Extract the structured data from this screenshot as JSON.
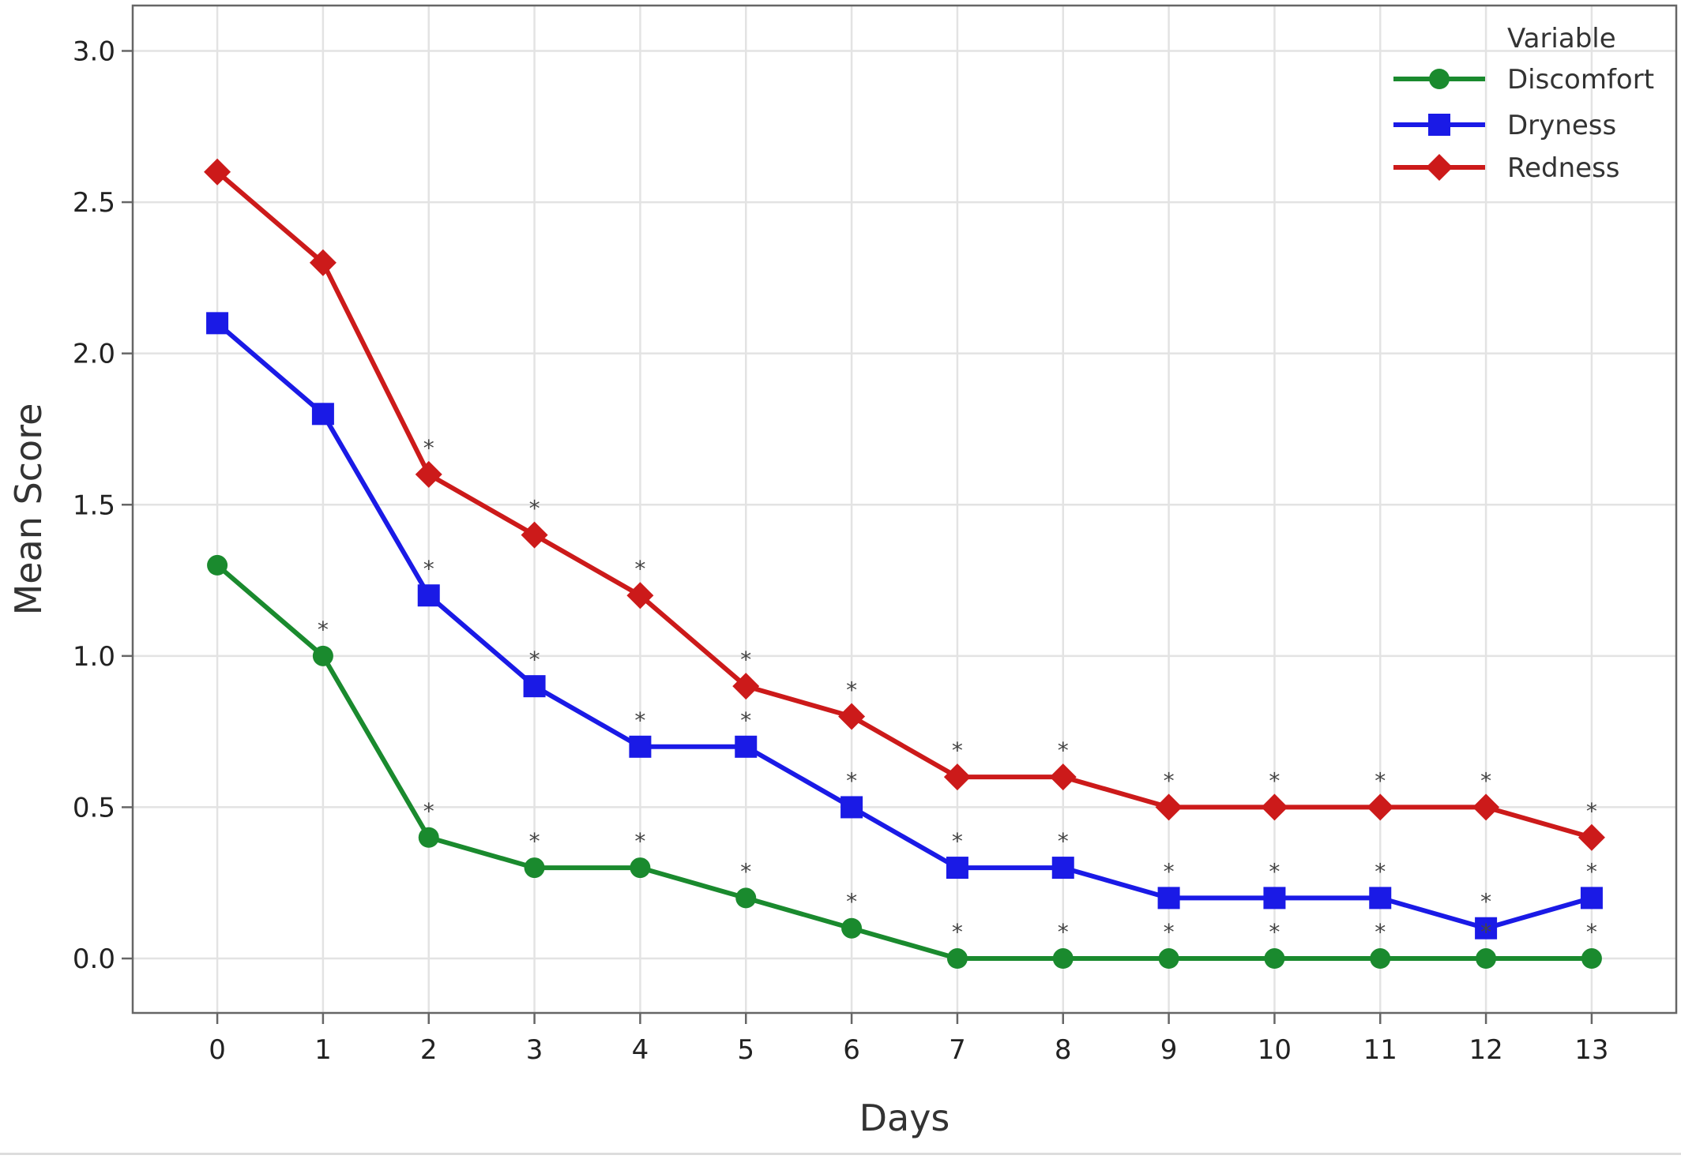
{
  "chart_data": {
    "type": "line",
    "title": "",
    "xlabel": "Days",
    "ylabel": "Mean Score",
    "x": [
      0,
      1,
      2,
      3,
      4,
      5,
      6,
      7,
      8,
      9,
      10,
      11,
      12,
      13
    ],
    "x_tick_labels": [
      "0",
      "1",
      "2",
      "3",
      "4",
      "5",
      "6",
      "7",
      "8",
      "9",
      "10",
      "11",
      "12",
      "13"
    ],
    "y_ticks": [
      0.0,
      0.5,
      1.0,
      1.5,
      2.0,
      2.5,
      3.0
    ],
    "y_tick_labels": [
      "0.0",
      "0.5",
      "1.0",
      "1.5",
      "2.0",
      "2.5",
      "3.0"
    ],
    "xlim": [
      -0.8,
      13.8
    ],
    "ylim": [
      -0.18,
      3.15
    ],
    "grid": true,
    "legend": {
      "title": "Variable",
      "placement": "top-right"
    },
    "significance_marker": "*",
    "series": [
      {
        "name": "Discomfort",
        "color": "#1a8a2e",
        "marker": "circle",
        "values": [
          1.3,
          1.0,
          0.4,
          0.3,
          0.3,
          0.2,
          0.1,
          0.0,
          0.0,
          0.0,
          0.0,
          0.0,
          0.0,
          0.0
        ],
        "significant": [
          false,
          true,
          true,
          true,
          true,
          true,
          true,
          true,
          true,
          true,
          true,
          true,
          true,
          true
        ]
      },
      {
        "name": "Dryness",
        "color": "#1a1ae6",
        "marker": "square",
        "values": [
          2.1,
          1.8,
          1.2,
          0.9,
          0.7,
          0.7,
          0.5,
          0.3,
          0.3,
          0.2,
          0.2,
          0.2,
          0.1,
          0.2
        ],
        "significant": [
          false,
          false,
          true,
          true,
          true,
          true,
          true,
          true,
          true,
          true,
          true,
          true,
          true,
          true
        ]
      },
      {
        "name": "Redness",
        "color": "#cc1a1a",
        "marker": "diamond",
        "values": [
          2.6,
          2.3,
          1.6,
          1.4,
          1.2,
          0.9,
          0.8,
          0.6,
          0.6,
          0.5,
          0.5,
          0.5,
          0.5,
          0.4
        ],
        "significant": [
          false,
          false,
          true,
          true,
          true,
          true,
          true,
          true,
          true,
          true,
          true,
          true,
          true,
          true
        ]
      }
    ]
  }
}
